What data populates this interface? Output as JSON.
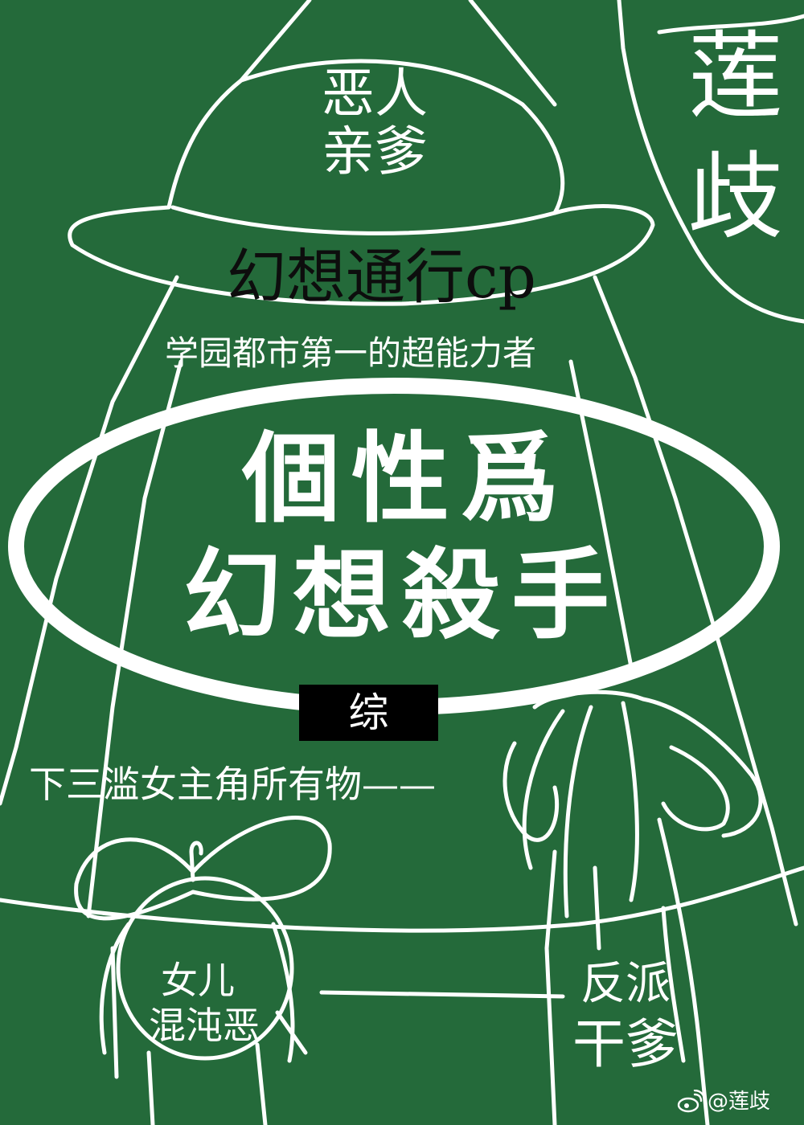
{
  "corner_signature": [
    "莲",
    "歧"
  ],
  "hat_text": [
    "恶人",
    "亲爹"
  ],
  "cp_line": "幻想通行cp",
  "subtitle": "学园都市第一的超能力者",
  "title": [
    "個性爲",
    "幻想殺手"
  ],
  "genre_badge": "综",
  "tagline": "下三滥女主角所有物——",
  "girl_text": [
    "女儿",
    "混沌恶"
  ],
  "boy_text": [
    "反派",
    "干爹"
  ],
  "credit": "@莲歧",
  "colors": {
    "background": "#246a3a",
    "line": "#ffffff",
    "badge": "#000000",
    "cp_text": "#0d0d0d"
  },
  "icons": {
    "credit": "weibo-icon"
  }
}
